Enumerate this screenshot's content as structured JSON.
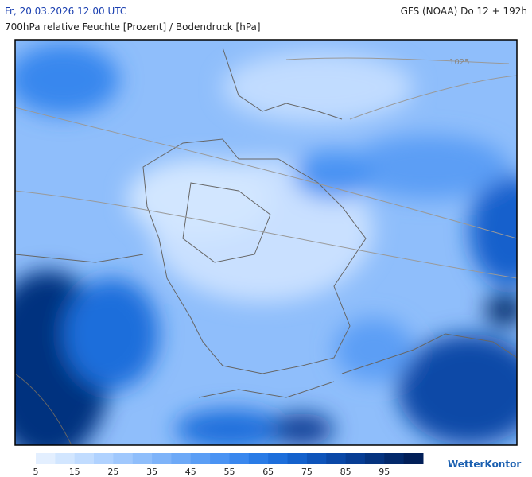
{
  "header": {
    "date": "Fr, 20.03.2026 12:00 UTC",
    "model": "GFS (NOAA) Do 12 + 192h",
    "subtitle": "700hPa relative Feuchte [Prozent] / Bodendruck [hPa]"
  },
  "map": {
    "isobar_label": "1025"
  },
  "legend": {
    "ticks": [
      5,
      15,
      25,
      35,
      45,
      55,
      65,
      75,
      85,
      95
    ],
    "colors": [
      "#e3efff",
      "#d2e6ff",
      "#c1dcff",
      "#b0d2ff",
      "#a0c8fd",
      "#8fbefb",
      "#7eb3f9",
      "#6da9f7",
      "#5b9ef5",
      "#4a93f3",
      "#3987ee",
      "#297be6",
      "#1d6edb",
      "#1461cc",
      "#0e54ba",
      "#0a48a7",
      "#073d94",
      "#05337f",
      "#03296b",
      "#021f58"
    ]
  },
  "logo": "WetterKontor"
}
